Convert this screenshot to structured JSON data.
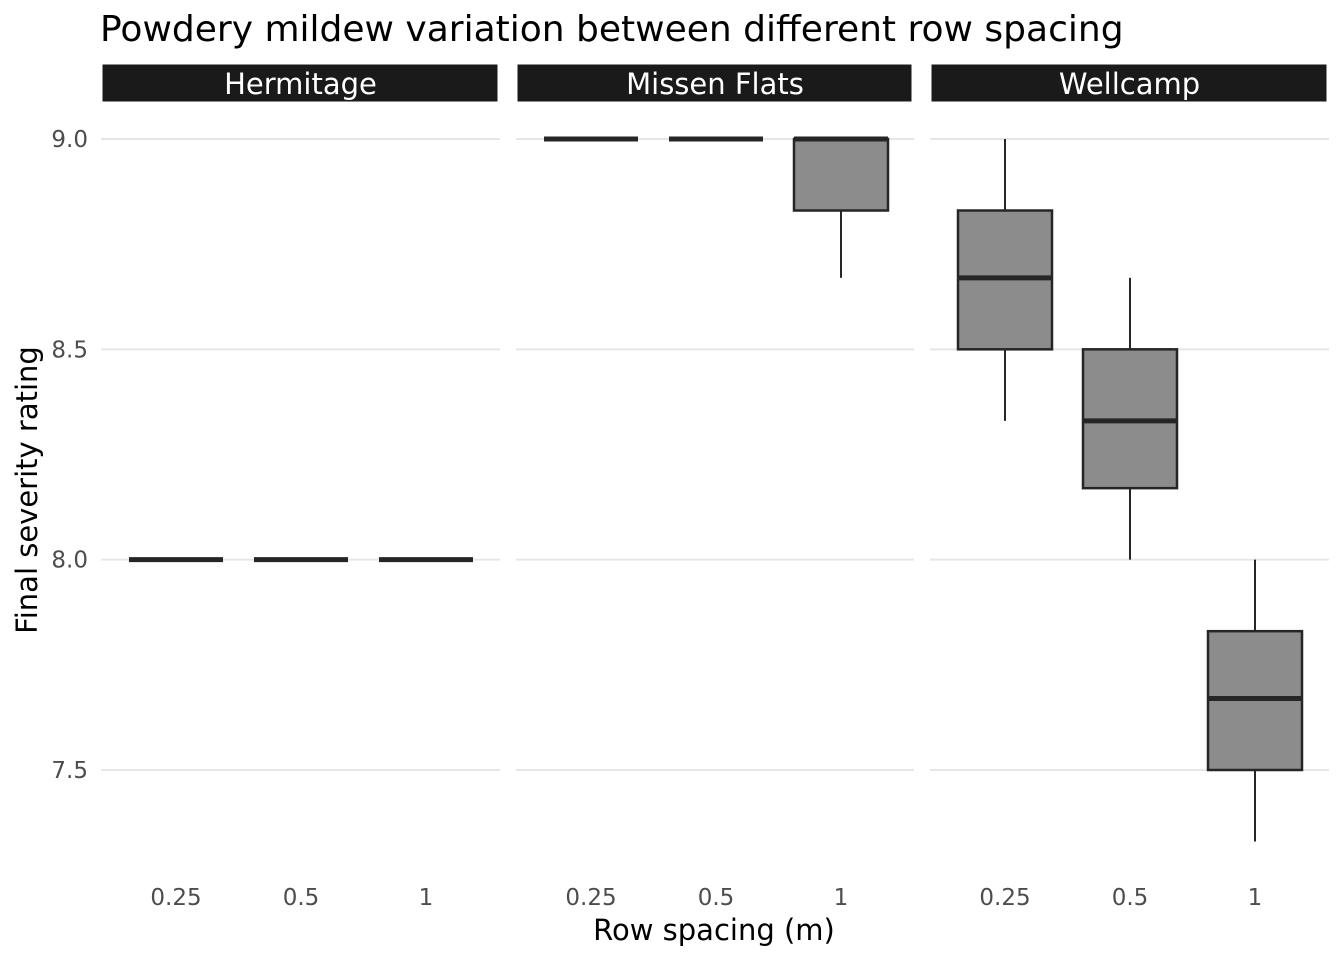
{
  "chart_data": {
    "type": "boxplot",
    "title": "Powdery mildew variation between different row spacing",
    "xlabel": "Row spacing (m)",
    "ylabel": "Final severity rating",
    "categories": [
      "0.25",
      "0.5",
      "1"
    ],
    "yticks": [
      "7.5",
      "8.0",
      "8.5",
      "9.0"
    ],
    "ylim": [
      7.3,
      9.05
    ],
    "grid": true,
    "colors": {
      "box_fill": "#8c8c8c",
      "box_line": "#262626",
      "strip": "#1a1a1a",
      "grid": "#e6e6e6"
    },
    "facets": [
      {
        "name": "Hermitage",
        "boxes": [
          {
            "x": "0.25",
            "min": 8.0,
            "q1": 8.0,
            "median": 8.0,
            "q3": 8.0,
            "max": 8.0
          },
          {
            "x": "0.5",
            "min": 8.0,
            "q1": 8.0,
            "median": 8.0,
            "q3": 8.0,
            "max": 8.0
          },
          {
            "x": "1",
            "min": 8.0,
            "q1": 8.0,
            "median": 8.0,
            "q3": 8.0,
            "max": 8.0
          }
        ]
      },
      {
        "name": "Missen Flats",
        "boxes": [
          {
            "x": "0.25",
            "min": 9.0,
            "q1": 9.0,
            "median": 9.0,
            "q3": 9.0,
            "max": 9.0
          },
          {
            "x": "0.5",
            "min": 9.0,
            "q1": 9.0,
            "median": 9.0,
            "q3": 9.0,
            "max": 9.0
          },
          {
            "x": "1",
            "min": 8.67,
            "q1": 8.83,
            "median": 9.0,
            "q3": 9.0,
            "max": 9.0
          }
        ]
      },
      {
        "name": "Wellcamp",
        "boxes": [
          {
            "x": "0.25",
            "min": 8.33,
            "q1": 8.5,
            "median": 8.67,
            "q3": 8.83,
            "max": 9.0
          },
          {
            "x": "0.5",
            "min": 8.0,
            "q1": 8.17,
            "median": 8.33,
            "q3": 8.5,
            "max": 8.67
          },
          {
            "x": "1",
            "min": 7.33,
            "q1": 7.5,
            "median": 7.67,
            "q3": 7.83,
            "max": 8.0
          }
        ]
      }
    ]
  }
}
